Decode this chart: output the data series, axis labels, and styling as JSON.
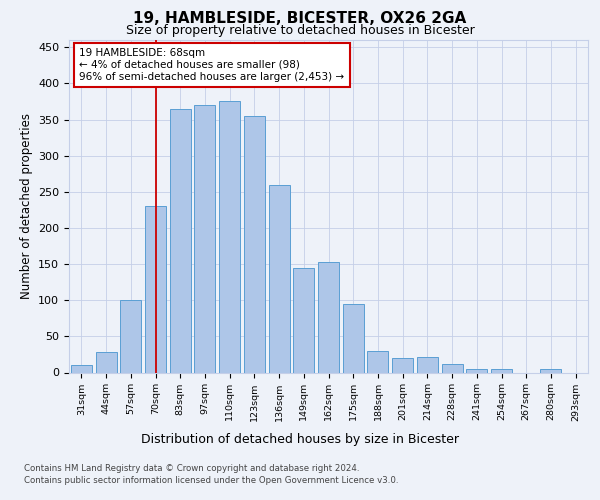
{
  "title_line1": "19, HAMBLESIDE, BICESTER, OX26 2GA",
  "title_line2": "Size of property relative to detached houses in Bicester",
  "xlabel": "Distribution of detached houses by size in Bicester",
  "ylabel": "Number of detached properties",
  "categories": [
    "31sqm",
    "44sqm",
    "57sqm",
    "70sqm",
    "83sqm",
    "97sqm",
    "110sqm",
    "123sqm",
    "136sqm",
    "149sqm",
    "162sqm",
    "175sqm",
    "188sqm",
    "201sqm",
    "214sqm",
    "228sqm",
    "241sqm",
    "254sqm",
    "267sqm",
    "280sqm",
    "293sqm"
  ],
  "values": [
    10,
    28,
    100,
    230,
    365,
    370,
    375,
    355,
    260,
    145,
    153,
    95,
    30,
    20,
    22,
    12,
    5,
    5,
    0,
    5,
    0
  ],
  "bar_color": "#aec6e8",
  "bar_edge_color": "#5a9fd4",
  "vline_color": "#cc0000",
  "vline_x_index": 3,
  "annotation_text": "19 HAMBLESIDE: 68sqm\n← 4% of detached houses are smaller (98)\n96% of semi-detached houses are larger (2,453) →",
  "annotation_box_color": "#ffffff",
  "annotation_box_edge_color": "#cc0000",
  "ylim": [
    0,
    460
  ],
  "yticks": [
    0,
    50,
    100,
    150,
    200,
    250,
    300,
    350,
    400,
    450
  ],
  "footer_line1": "Contains HM Land Registry data © Crown copyright and database right 2024.",
  "footer_line2": "Contains public sector information licensed under the Open Government Licence v3.0.",
  "bg_color": "#eef2f9",
  "plot_bg_color": "#eef2f9",
  "grid_color": "#c5cfe8"
}
